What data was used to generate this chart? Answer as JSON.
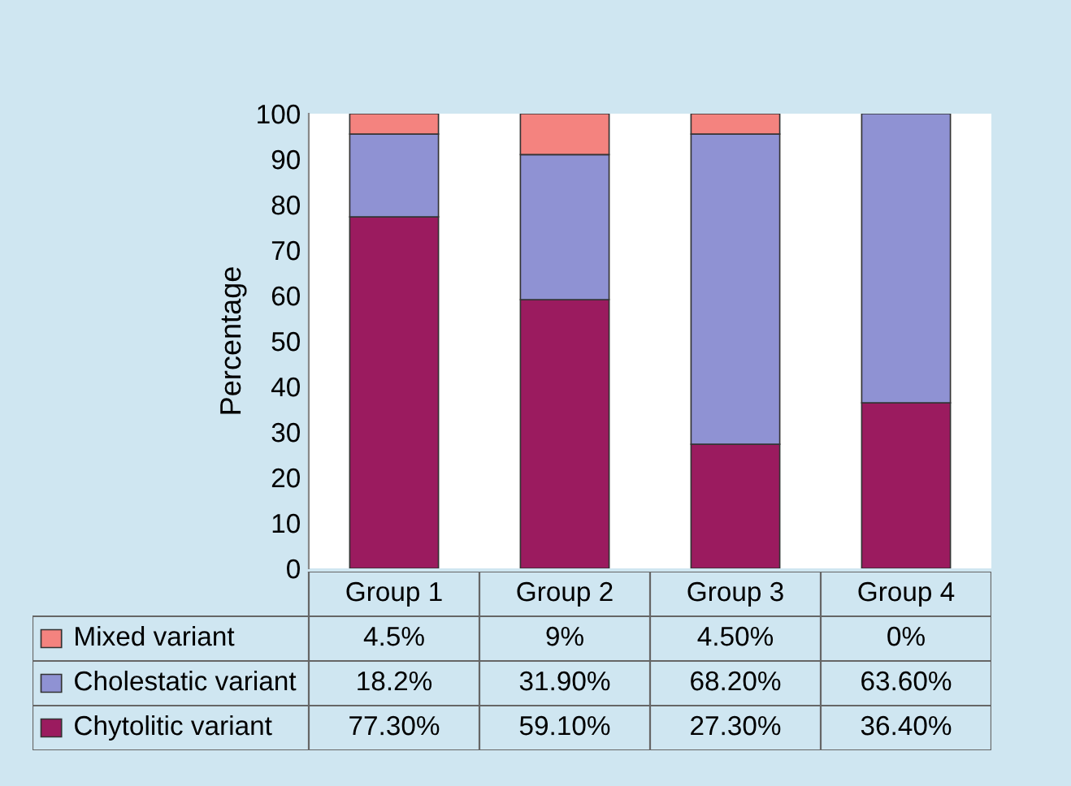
{
  "chart_data": {
    "type": "bar",
    "stacked": true,
    "ylabel": "Percentage",
    "categories": [
      "Group 1",
      "Group 2",
      "Group 3",
      "Group 4"
    ],
    "series": [
      {
        "name": "Chytolitic variant",
        "color": "#9b1b5f",
        "values": [
          77.3,
          59.1,
          27.3,
          36.4
        ],
        "value_labels": [
          "77.30%",
          "59.10%",
          "27.30%",
          "36.40%"
        ]
      },
      {
        "name": "Cholestatic variant",
        "color": "#8f92d3",
        "values": [
          18.2,
          31.9,
          68.2,
          63.6
        ],
        "value_labels": [
          "18.2%",
          "31.90%",
          "68.20%",
          "63.60%"
        ]
      },
      {
        "name": "Mixed variant",
        "color": "#f4837f",
        "values": [
          4.5,
          9,
          4.5,
          0
        ],
        "value_labels": [
          "4.5%",
          "9%",
          "4.50%",
          "0%"
        ]
      }
    ],
    "ylim": [
      0,
      100
    ],
    "yticks": [
      0,
      10,
      20,
      30,
      40,
      50,
      60,
      70,
      80,
      90,
      100
    ],
    "grid": false,
    "legend": "bottom left"
  }
}
